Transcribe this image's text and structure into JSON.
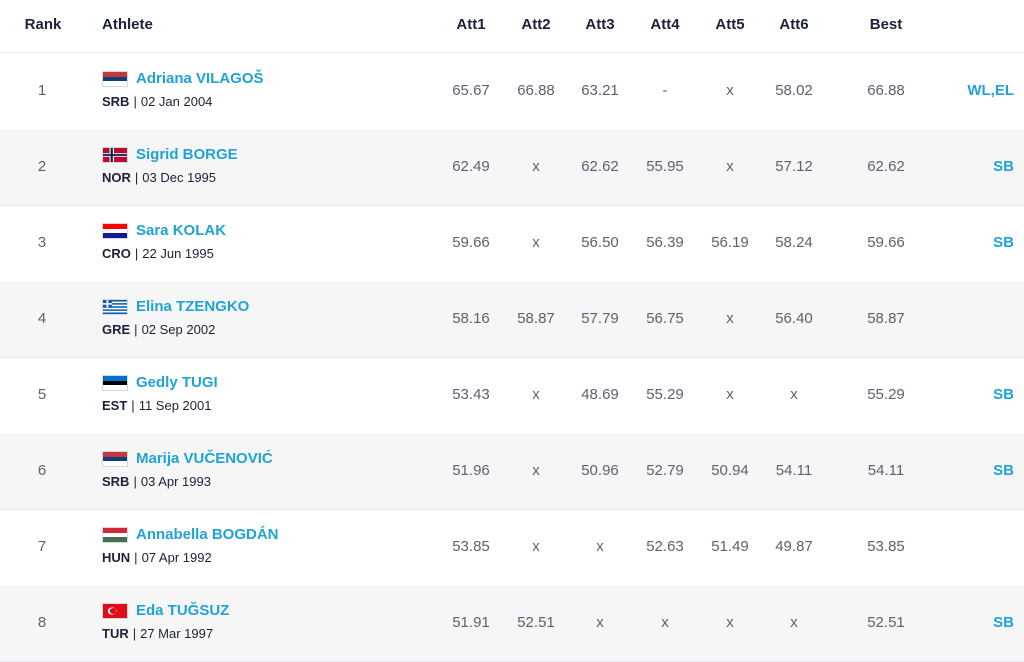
{
  "header": {
    "rank": "Rank",
    "athlete": "Athlete",
    "att1": "Att1",
    "att2": "Att2",
    "att3": "Att3",
    "att4": "Att4",
    "att5": "Att5",
    "att6": "Att6",
    "best": "Best"
  },
  "rows": [
    {
      "rank": "1",
      "name": "Adriana VILAGOŠ",
      "nat": "SRB",
      "dob": "02 Jan 2004",
      "a1": "65.67",
      "a2": "66.88",
      "a3": "63.21",
      "a4": "-",
      "a5": "x",
      "a6": "58.02",
      "best": "66.88",
      "rec": "WL,EL"
    },
    {
      "rank": "2",
      "name": "Sigrid BORGE",
      "nat": "NOR",
      "dob": "03 Dec 1995",
      "a1": "62.49",
      "a2": "x",
      "a3": "62.62",
      "a4": "55.95",
      "a5": "x",
      "a6": "57.12",
      "best": "62.62",
      "rec": "SB"
    },
    {
      "rank": "3",
      "name": "Sara KOLAK",
      "nat": "CRO",
      "dob": "22 Jun 1995",
      "a1": "59.66",
      "a2": "x",
      "a3": "56.50",
      "a4": "56.39",
      "a5": "56.19",
      "a6": "58.24",
      "best": "59.66",
      "rec": "SB"
    },
    {
      "rank": "4",
      "name": "Elina TZENGKO",
      "nat": "GRE",
      "dob": "02 Sep 2002",
      "a1": "58.16",
      "a2": "58.87",
      "a3": "57.79",
      "a4": "56.75",
      "a5": "x",
      "a6": "56.40",
      "best": "58.87",
      "rec": ""
    },
    {
      "rank": "5",
      "name": "Gedly TUGI",
      "nat": "EST",
      "dob": "11 Sep 2001",
      "a1": "53.43",
      "a2": "x",
      "a3": "48.69",
      "a4": "55.29",
      "a5": "x",
      "a6": "x",
      "best": "55.29",
      "rec": "SB"
    },
    {
      "rank": "6",
      "name": "Marija VUČENOVIĆ",
      "nat": "SRB",
      "dob": "03 Apr 1993",
      "a1": "51.96",
      "a2": "x",
      "a3": "50.96",
      "a4": "52.79",
      "a5": "50.94",
      "a6": "54.11",
      "best": "54.11",
      "rec": "SB"
    },
    {
      "rank": "7",
      "name": "Annabella BOGDÁN",
      "nat": "HUN",
      "dob": "07 Apr 1992",
      "a1": "53.85",
      "a2": "x",
      "a3": "x",
      "a4": "52.63",
      "a5": "51.49",
      "a6": "49.87",
      "best": "53.85",
      "rec": ""
    },
    {
      "rank": "8",
      "name": "Eda TUĞSUZ",
      "nat": "TUR",
      "dob": "27 Mar 1997",
      "a1": "51.91",
      "a2": "52.51",
      "a3": "x",
      "a4": "x",
      "a5": "x",
      "a6": "x",
      "best": "52.51",
      "rec": "SB"
    }
  ],
  "flags": {
    "srb": {
      "icon": "serbia-flag-icon",
      "colors": [
        "#c6363c",
        "#0c4076",
        "#ffffff"
      ]
    },
    "nor": {
      "icon": "norway-flag-icon",
      "colors": [
        "#ba0c2f",
        "#ffffff",
        "#00205b"
      ]
    },
    "cro": {
      "icon": "croatia-flag-icon",
      "colors": [
        "#ff0000",
        "#ffffff",
        "#171796"
      ]
    },
    "gre": {
      "icon": "greece-flag-icon",
      "colors": [
        "#0d5eaf",
        "#ffffff"
      ]
    },
    "est": {
      "icon": "estonia-flag-icon",
      "colors": [
        "#0072ce",
        "#000000",
        "#ffffff"
      ]
    },
    "hun": {
      "icon": "hungary-flag-icon",
      "colors": [
        "#ce2939",
        "#ffffff",
        "#477050"
      ]
    },
    "tur": {
      "icon": "turkey-flag-icon",
      "colors": [
        "#e30a17",
        "#ffffff"
      ]
    }
  },
  "colors": {
    "accent": "#1fa3d6",
    "text": "#1b2237",
    "muted": "#5a6270",
    "row_alt": "#f6f6f7",
    "divider": "#e4e6ea"
  }
}
